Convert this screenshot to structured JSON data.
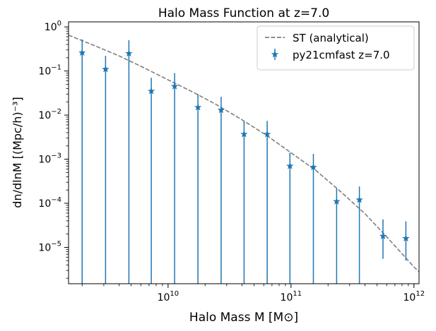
{
  "chart_data": {
    "type": "scatter",
    "title": "Halo Mass Function at z=7.0",
    "xlabel": "Halo Mass M [M⊙]",
    "ylabel": "dn/dlnM [(Mpc/h)⁻³]",
    "xscale": "log",
    "yscale": "log",
    "xlim": [
      1550000000.0,
      1100000000000.0
    ],
    "ylim": [
      1.5e-06,
      1.3
    ],
    "xticks": [
      {
        "value": 10000000000.0,
        "base": "10",
        "exp": "10"
      },
      {
        "value": 100000000000.0,
        "base": "10",
        "exp": "11"
      },
      {
        "value": 1000000000000.0,
        "base": "10",
        "exp": "12"
      }
    ],
    "yticks": [
      {
        "value": 1,
        "base": "10",
        "exp": "0"
      },
      {
        "value": 0.1,
        "base": "10",
        "exp": "−1"
      },
      {
        "value": 0.01,
        "base": "10",
        "exp": "−2"
      },
      {
        "value": 0.001,
        "base": "10",
        "exp": "−3"
      },
      {
        "value": 0.0001,
        "base": "10",
        "exp": "−4"
      },
      {
        "value": 1e-05,
        "base": "10",
        "exp": "−5"
      }
    ],
    "grid": false,
    "legend_position": "top-right",
    "series": [
      {
        "name": "ST (analytical)",
        "kind": "line",
        "style": "dashed",
        "color": "#7f7f7f",
        "x": [
          1550000000.0,
          2500000000.0,
          4000000000.0,
          6300000000.0,
          10000000000.0,
          16000000000.0,
          25000000000.0,
          40000000000.0,
          63000000000.0,
          100000000000.0,
          160000000000.0,
          250000000000.0,
          400000000000.0,
          630000000000.0,
          1000000000000.0,
          1100000000000.0
        ],
        "y": [
          0.65,
          0.38,
          0.22,
          0.12,
          0.063,
          0.033,
          0.017,
          0.0078,
          0.0035,
          0.0014,
          0.00055,
          0.00019,
          5.8e-05,
          1.5e-05,
          3.6e-06,
          2.8e-06
        ]
      },
      {
        "name": "py21cmfast z=7.0",
        "kind": "errorbar",
        "marker": "star",
        "color": "#1f77b4",
        "x": [
          2000000000.0,
          3100000000.0,
          4800000000.0,
          7300000000.0,
          11300000000.0,
          17500000000.0,
          27000000000.0,
          41500000000.0,
          64000000000.0,
          98000000000.0,
          152000000000.0,
          235000000000.0,
          360000000000.0,
          560000000000.0,
          860000000000.0
        ],
        "y": [
          0.26,
          0.11,
          0.25,
          0.035,
          0.045,
          0.015,
          0.013,
          0.0037,
          0.0037,
          0.0007,
          0.00066,
          0.00011,
          0.00012,
          1.8e-05,
          1.6e-05
        ],
        "yerr_low": [
          0.26,
          0.11,
          0.25,
          0.035,
          0.045,
          0.015,
          0.013,
          0.0037,
          0.0037,
          0.0007,
          0.00066,
          0.00011,
          0.00012,
          1.25e-05,
          1.1e-05
        ],
        "yerr_high": [
          0.26,
          0.11,
          0.25,
          0.035,
          0.045,
          0.015,
          0.013,
          0.0037,
          0.0037,
          0.0007,
          0.00066,
          0.00011,
          0.00012,
          2.5e-05,
          2.3e-05
        ]
      }
    ]
  }
}
